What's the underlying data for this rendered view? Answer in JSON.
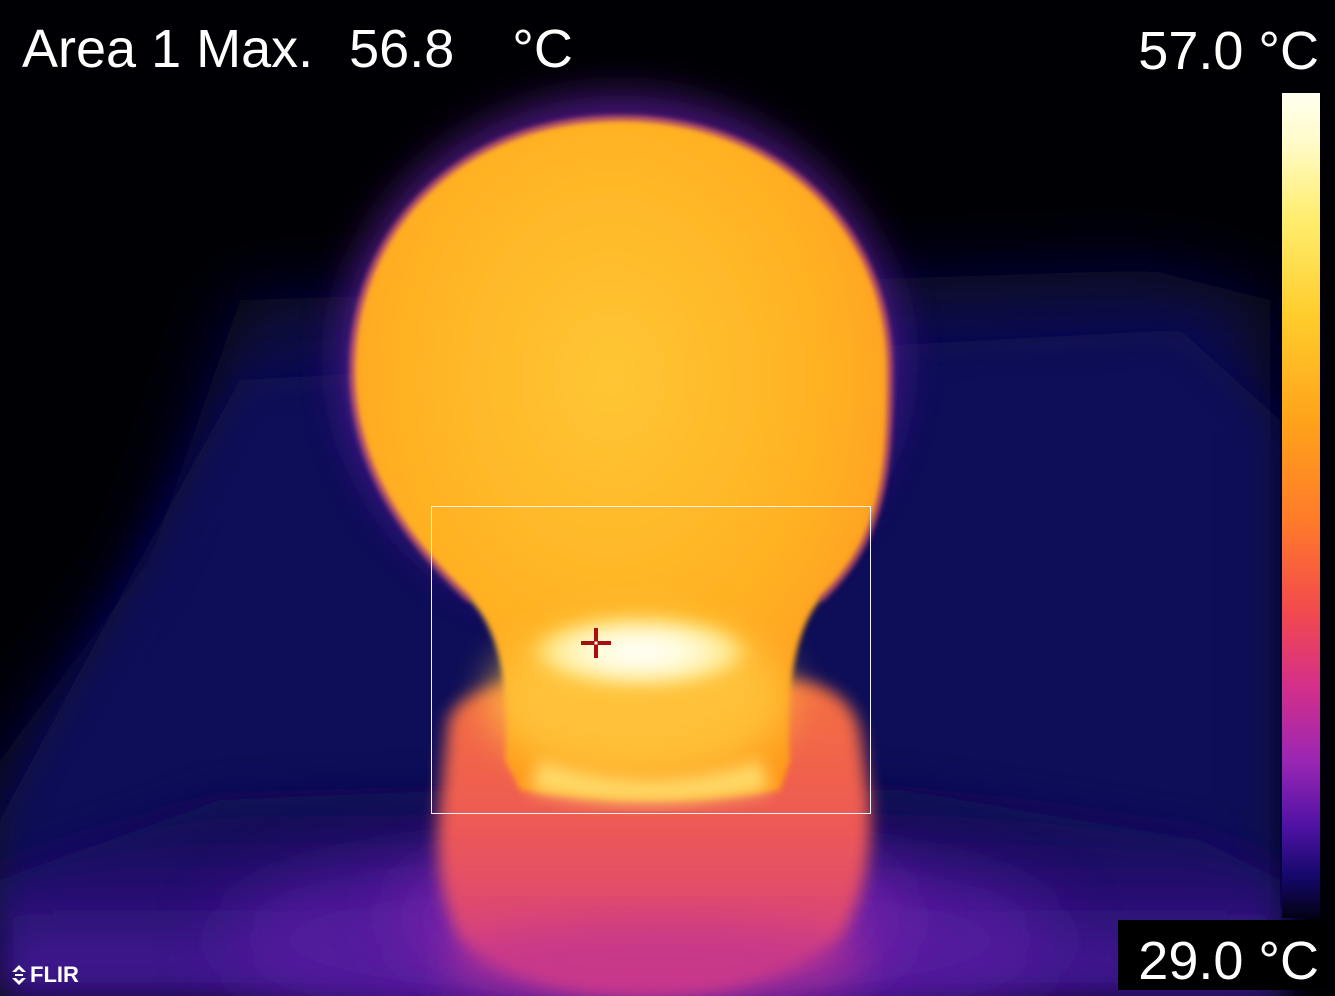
{
  "measurement": {
    "label": "Area 1 Max.",
    "value": "56.8",
    "unit": "°C"
  },
  "scale": {
    "max": "57.0 °C",
    "min": "29.0 °C",
    "palette": "iron"
  },
  "brand": {
    "name": "FLIR"
  },
  "colors": {
    "hot": "#ffffe0",
    "warm": "#ffb020",
    "mid": "#e84a6a",
    "cool": "#3a1290",
    "cold": "#02021a"
  }
}
